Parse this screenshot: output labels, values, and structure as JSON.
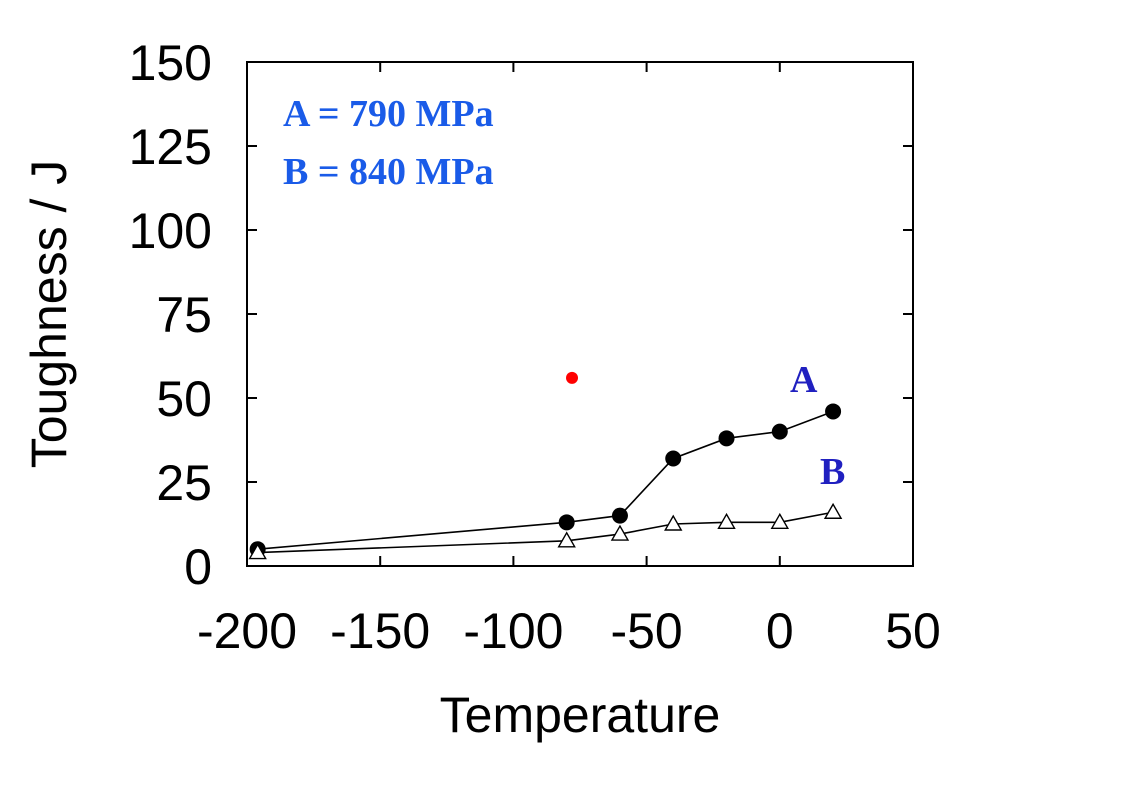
{
  "chart_data": {
    "type": "line",
    "xlabel": "Temperature",
    "ylabel": "Toughness / J",
    "xlim": [
      -200,
      50
    ],
    "ylim": [
      0,
      150
    ],
    "xticks": [
      -200,
      -150,
      -100,
      -50,
      0,
      50
    ],
    "yticks": [
      0,
      25,
      50,
      75,
      100,
      125,
      150
    ],
    "grid": false,
    "annotations": [
      "A = 790 MPa",
      "B = 840 MPa"
    ],
    "series": [
      {
        "name": "A",
        "marker": "filled-circle",
        "color": "#000000",
        "x": [
          -196,
          -80,
          -60,
          -40,
          -20,
          0,
          20
        ],
        "y": [
          5,
          13,
          15,
          32,
          38,
          40,
          46
        ]
      },
      {
        "name": "B",
        "marker": "open-triangle",
        "color": "#000000",
        "x": [
          -196,
          -80,
          -60,
          -40,
          -20,
          0,
          20
        ],
        "y": [
          4,
          7.5,
          9.5,
          12.5,
          13,
          13,
          16
        ]
      }
    ],
    "extra_points": [
      {
        "x": -78,
        "y": 56,
        "color": "#ff0000"
      }
    ]
  },
  "colors": {
    "annotation": "#1a5be8",
    "series_label": "#2020c0",
    "extra_point": "#ff0000"
  }
}
